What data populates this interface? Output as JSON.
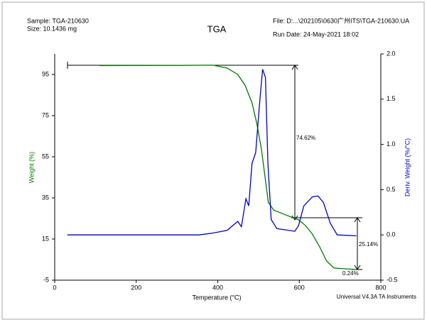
{
  "header": {
    "sample": "Sample: TGA-210630",
    "size": "Size:  10.1436 mg",
    "file": "File: D:...\\202105\\0630广州ITS\\TGA-210630.UA",
    "run_date": "Run Date: 24-May-2021 18:02"
  },
  "footer": "Universal V4.3A TA Instruments",
  "chart_data": {
    "type": "line",
    "title": "TGA",
    "x_label": "Temperature (°C)",
    "y_label": "Weight (%)",
    "y2_label": "Deriv. Weight (%/°C)",
    "xlim": [
      0,
      800
    ],
    "xticks": [
      0,
      200,
      400,
      600,
      800
    ],
    "ylim": [
      -5,
      105
    ],
    "yticks": [
      95,
      75,
      55,
      35,
      15,
      -5
    ],
    "y2lim": [
      -0.5,
      2.0
    ],
    "y2ticks": [
      {
        "value": 2,
        "label": "2.0"
      },
      1.5,
      {
        "value": 1,
        "label": "1.0"
      },
      0.5,
      {
        "value": 0,
        "label": "0.0"
      },
      -0.5
    ],
    "annotations": [
      "74.62%",
      "25.14%",
      "0.24%"
    ],
    "series": [
      {
        "name": "Weight",
        "color": "#007a00",
        "axis": "y",
        "x": [
          110,
          300,
          388,
          423,
          449,
          467,
          484,
          496,
          507,
          516,
          524,
          537,
          563,
          598,
          615,
          632,
          650,
          667,
          685,
          737
        ],
        "values": [
          99.3,
          99.4,
          99.5,
          98.1,
          95,
          89.8,
          81.2,
          70.9,
          58.8,
          45,
          32.9,
          29.1,
          27,
          24.3,
          21.6,
          17.4,
          11.2,
          4.3,
          0.9,
          0.2
        ]
      },
      {
        "name": "Deriv. Weight",
        "color": "#0000cc",
        "axis": "y2",
        "x": [
          31,
          200,
          354,
          388,
          423,
          449,
          458,
          469,
          476,
          484,
          493,
          502,
          510,
          517,
          523,
          531,
          545,
          589,
          598,
          611,
          632,
          646,
          659,
          676,
          693,
          740
        ],
        "values": [
          0,
          0,
          0,
          0.02,
          0.05,
          0.15,
          0.09,
          0.4,
          0.32,
          0.79,
          0.91,
          1.42,
          1.83,
          1.74,
          0.79,
          0.17,
          0.07,
          0.04,
          0.1,
          0.32,
          0.42,
          0.43,
          0.36,
          0.13,
          0,
          -0.01
        ]
      }
    ]
  }
}
